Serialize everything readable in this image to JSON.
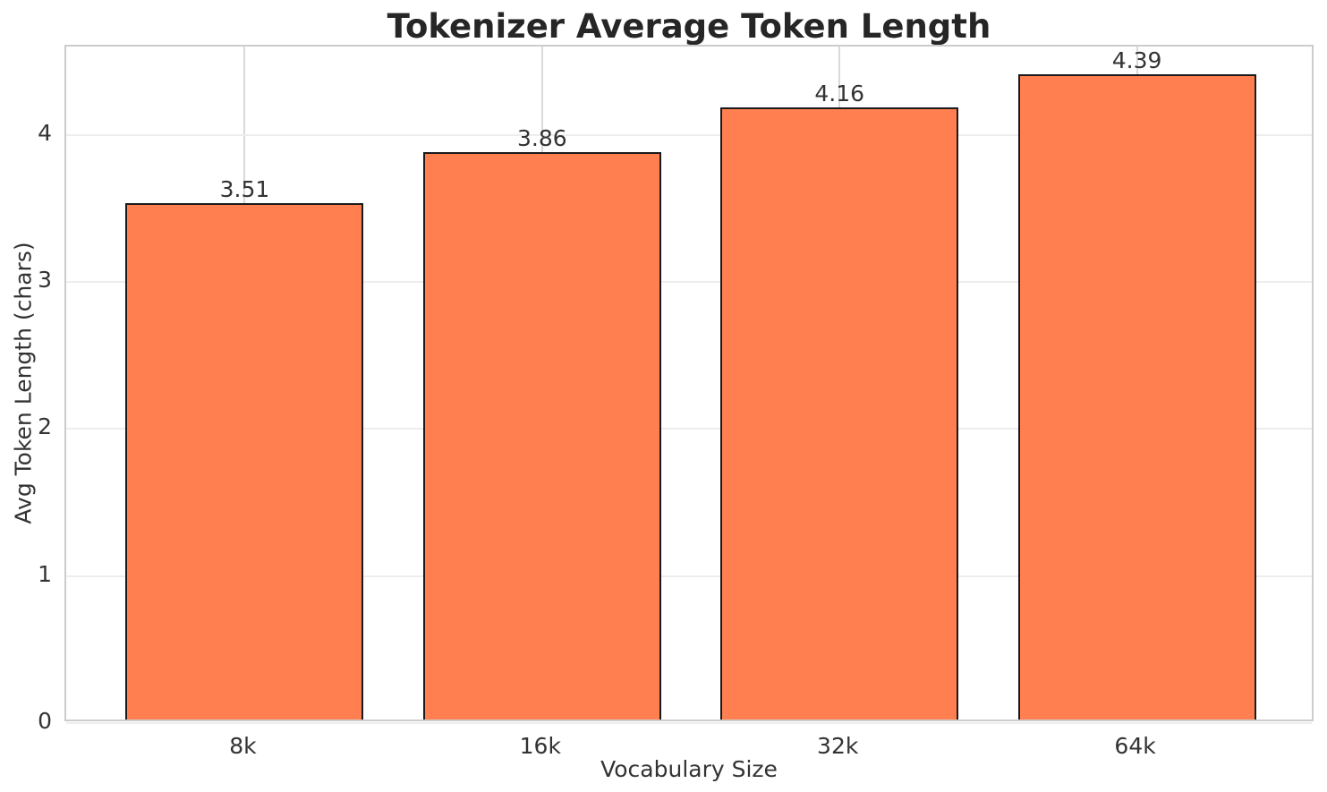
{
  "chart_data": {
    "type": "bar",
    "title": "Tokenizer Average Token Length",
    "xlabel": "Vocabulary Size",
    "ylabel": "Avg Token Length (chars)",
    "categories": [
      "8k",
      "16k",
      "32k",
      "64k"
    ],
    "values": [
      3.51,
      3.86,
      4.16,
      4.39
    ],
    "value_labels": [
      "3.51",
      "3.86",
      "4.16",
      "4.39"
    ],
    "yticks": [
      0,
      1,
      2,
      3,
      4
    ],
    "ytick_labels": [
      "0",
      "1",
      "2",
      "3",
      "4"
    ],
    "ylim": [
      0,
      4.6
    ],
    "xlim": [
      -0.6,
      3.6
    ],
    "bar_width_units": 0.8,
    "grid": true,
    "legend": "none",
    "colors": {
      "bar_fill": "#FF7F50",
      "bar_edge": "#1a1a1a",
      "grid_horizontal": "#ededed",
      "grid_vertical": "#d9d9d9",
      "spine": "#cccccc",
      "tick_text": "#333333",
      "title_text": "#262626"
    }
  }
}
